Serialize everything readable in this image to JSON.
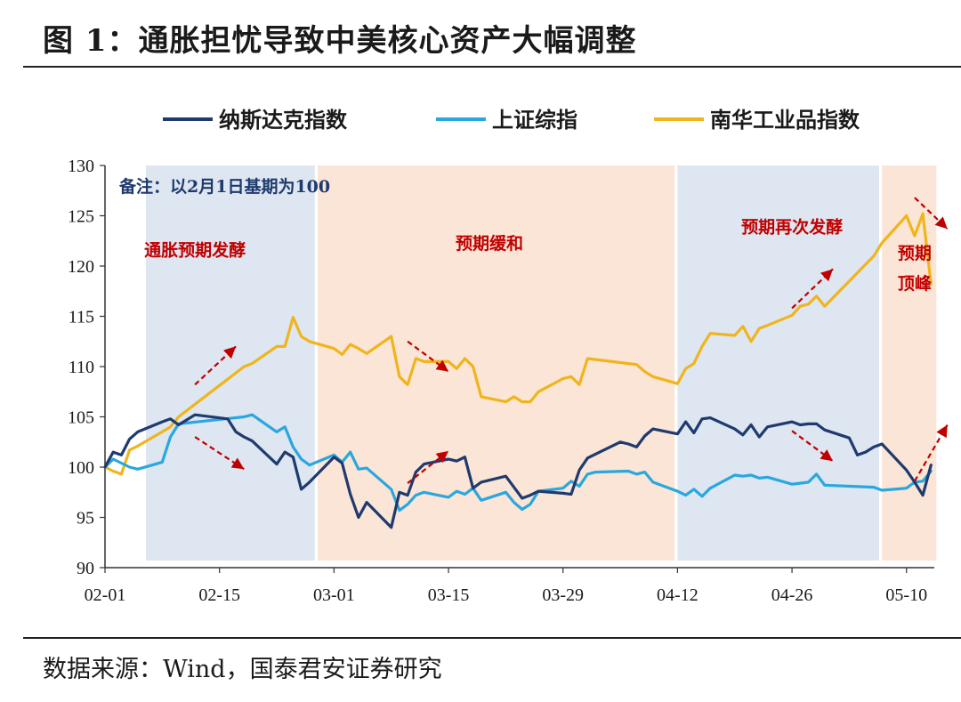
{
  "figure": {
    "title": "图 1：通胀担忧导致中美核心资产大幅调整",
    "source": "数据来源：Wind，国泰君安证券研究"
  },
  "chart_data": {
    "type": "line",
    "ylim": [
      90,
      130
    ],
    "yticks": [
      90,
      95,
      100,
      105,
      110,
      115,
      120,
      125,
      130
    ],
    "x_ticks": [
      "02-01",
      "02-15",
      "03-01",
      "03-15",
      "03-29",
      "04-12",
      "04-26",
      "05-10"
    ],
    "grid": false,
    "legend_position": "top",
    "colors": {
      "nasdaq": "#1f3a6e",
      "sse": "#2aa7de",
      "nanhua": "#f0b51c",
      "blue_band": "#dde6f1",
      "orange_band": "#fbe5d6",
      "annotation": "#c00000"
    },
    "note": "备注：以2月1日基期为100",
    "shaded_periods": [
      {
        "start": "02-06",
        "end": "02-26",
        "shade": "blue"
      },
      {
        "start": "02-27",
        "end": "04-11",
        "shade": "orange"
      },
      {
        "start": "04-12",
        "end": "05-06",
        "shade": "blue"
      },
      {
        "start": "05-07",
        "end": "05-13",
        "shade": "orange"
      }
    ],
    "annotations": [
      {
        "text": "通胀预期发酵",
        "date": "02-12",
        "y": 121
      },
      {
        "text": "预期缓和",
        "date": "03-20",
        "y": 121.7
      },
      {
        "text": "预期再次发酵",
        "date": "04-26",
        "y": 123.3
      },
      {
        "text": "预期",
        "date": "05-11",
        "y": 120.7
      },
      {
        "text": "顶峰",
        "date": "05-11",
        "y": 117.7
      }
    ],
    "arrows": [
      {
        "from": [
          "02-12",
          108.2
        ],
        "to": [
          "02-17",
          112
        ],
        "dir": "up"
      },
      {
        "from": [
          "02-12",
          103.0
        ],
        "to": [
          "02-18",
          99.8
        ],
        "dir": "down"
      },
      {
        "from": [
          "03-10",
          112.5
        ],
        "to": [
          "03-15",
          109.5
        ],
        "dir": "down"
      },
      {
        "from": [
          "03-10",
          98.4
        ],
        "to": [
          "03-15",
          101.6
        ],
        "dir": "up"
      },
      {
        "from": [
          "04-26",
          115.8
        ],
        "to": [
          "05-01",
          119.7
        ],
        "dir": "up"
      },
      {
        "from": [
          "04-26",
          103.6
        ],
        "to": [
          "05-01",
          100.6
        ],
        "dir": "down"
      },
      {
        "from": [
          "05-11",
          126.8
        ],
        "to": [
          "05-15",
          123.7
        ],
        "dir": "down"
      },
      {
        "from": [
          "05-11",
          98.6
        ],
        "to": [
          "05-15",
          104.2
        ],
        "dir": "up"
      }
    ],
    "series": [
      {
        "name": "纳斯达克指数",
        "key": "nasdaq",
        "points": [
          [
            "02-01",
            100.0
          ],
          [
            "02-02",
            101.5
          ],
          [
            "02-03",
            101.2
          ],
          [
            "02-04",
            102.8
          ],
          [
            "02-05",
            103.5
          ],
          [
            "02-08",
            104.5
          ],
          [
            "02-09",
            104.8
          ],
          [
            "02-10",
            104.2
          ],
          [
            "02-11",
            104.7
          ],
          [
            "02-12",
            105.2
          ],
          [
            "02-16",
            104.8
          ],
          [
            "02-17",
            103.5
          ],
          [
            "02-18",
            103.0
          ],
          [
            "02-19",
            102.6
          ],
          [
            "02-22",
            100.3
          ],
          [
            "02-23",
            101.5
          ],
          [
            "02-24",
            101.0
          ],
          [
            "02-25",
            97.8
          ],
          [
            "02-26",
            98.5
          ],
          [
            "03-01",
            101.0
          ],
          [
            "03-02",
            100.4
          ],
          [
            "03-03",
            97.3
          ],
          [
            "03-04",
            95.0
          ],
          [
            "03-05",
            96.5
          ],
          [
            "03-08",
            94.0
          ],
          [
            "03-09",
            97.5
          ],
          [
            "03-10",
            97.2
          ],
          [
            "03-11",
            99.5
          ],
          [
            "03-12",
            100.3
          ],
          [
            "03-15",
            100.8
          ],
          [
            "03-16",
            100.6
          ],
          [
            "03-17",
            101.0
          ],
          [
            "03-18",
            97.9
          ],
          [
            "03-19",
            98.5
          ],
          [
            "03-22",
            99.1
          ],
          [
            "03-23",
            98.0
          ],
          [
            "03-24",
            96.9
          ],
          [
            "03-25",
            97.2
          ],
          [
            "03-26",
            97.6
          ],
          [
            "03-29",
            97.4
          ],
          [
            "03-30",
            97.3
          ],
          [
            "03-31",
            99.7
          ],
          [
            "04-01",
            100.9
          ],
          [
            "04-05",
            102.5
          ],
          [
            "04-06",
            102.3
          ],
          [
            "04-07",
            102.0
          ],
          [
            "04-08",
            103.1
          ],
          [
            "04-09",
            103.8
          ],
          [
            "04-12",
            103.3
          ],
          [
            "04-13",
            104.5
          ],
          [
            "04-14",
            103.4
          ],
          [
            "04-15",
            104.8
          ],
          [
            "04-16",
            104.9
          ],
          [
            "04-19",
            103.8
          ],
          [
            "04-20",
            103.2
          ],
          [
            "04-21",
            104.2
          ],
          [
            "04-22",
            103.0
          ],
          [
            "04-23",
            104.0
          ],
          [
            "04-26",
            104.5
          ],
          [
            "04-27",
            104.2
          ],
          [
            "04-28",
            104.3
          ],
          [
            "04-29",
            104.3
          ],
          [
            "04-30",
            103.7
          ],
          [
            "05-03",
            102.9
          ],
          [
            "05-04",
            101.2
          ],
          [
            "05-05",
            101.5
          ],
          [
            "05-06",
            102.0
          ],
          [
            "05-07",
            102.3
          ],
          [
            "05-10",
            99.7
          ],
          [
            "05-11",
            98.5
          ],
          [
            "05-12",
            97.2
          ],
          [
            "05-13",
            100.2
          ]
        ]
      },
      {
        "name": "上证综指",
        "key": "sse",
        "points": [
          [
            "02-01",
            100.0
          ],
          [
            "02-02",
            100.8
          ],
          [
            "02-03",
            100.4
          ],
          [
            "02-04",
            100.0
          ],
          [
            "02-05",
            99.8
          ],
          [
            "02-08",
            100.5
          ],
          [
            "02-09",
            103.0
          ],
          [
            "02-10",
            104.3
          ],
          [
            "02-18",
            105.0
          ],
          [
            "02-19",
            105.2
          ],
          [
            "02-22",
            103.5
          ],
          [
            "02-23",
            104.0
          ],
          [
            "02-24",
            102.0
          ],
          [
            "02-25",
            100.8
          ],
          [
            "02-26",
            100.2
          ],
          [
            "03-01",
            101.2
          ],
          [
            "03-02",
            100.5
          ],
          [
            "03-03",
            101.5
          ],
          [
            "03-04",
            99.8
          ],
          [
            "03-05",
            99.9
          ],
          [
            "03-08",
            97.8
          ],
          [
            "03-09",
            95.7
          ],
          [
            "03-10",
            96.3
          ],
          [
            "03-11",
            97.2
          ],
          [
            "03-12",
            97.5
          ],
          [
            "03-15",
            97.0
          ],
          [
            "03-16",
            97.6
          ],
          [
            "03-17",
            97.3
          ],
          [
            "03-18",
            97.9
          ],
          [
            "03-19",
            96.7
          ],
          [
            "03-22",
            97.5
          ],
          [
            "03-23",
            96.5
          ],
          [
            "03-24",
            95.8
          ],
          [
            "03-25",
            96.3
          ],
          [
            "03-26",
            97.6
          ],
          [
            "03-29",
            97.9
          ],
          [
            "03-30",
            98.6
          ],
          [
            "03-31",
            98.1
          ],
          [
            "04-01",
            99.3
          ],
          [
            "04-02",
            99.5
          ],
          [
            "04-06",
            99.6
          ],
          [
            "04-07",
            99.3
          ],
          [
            "04-08",
            99.5
          ],
          [
            "04-09",
            98.5
          ],
          [
            "04-12",
            97.6
          ],
          [
            "04-13",
            97.2
          ],
          [
            "04-14",
            97.8
          ],
          [
            "04-15",
            97.1
          ],
          [
            "04-16",
            97.9
          ],
          [
            "04-19",
            99.2
          ],
          [
            "04-20",
            99.1
          ],
          [
            "04-21",
            99.2
          ],
          [
            "04-22",
            98.9
          ],
          [
            "04-23",
            99.0
          ],
          [
            "04-26",
            98.3
          ],
          [
            "04-27",
            98.4
          ],
          [
            "04-28",
            98.5
          ],
          [
            "04-29",
            99.3
          ],
          [
            "04-30",
            98.2
          ],
          [
            "05-06",
            98.0
          ],
          [
            "05-07",
            97.7
          ],
          [
            "05-10",
            97.9
          ],
          [
            "05-11",
            98.5
          ],
          [
            "05-12",
            98.6
          ],
          [
            "05-13",
            99.6
          ]
        ]
      },
      {
        "name": "南华工业品指数",
        "key": "nanhua",
        "points": [
          [
            "02-01",
            100.0
          ],
          [
            "02-02",
            99.6
          ],
          [
            "02-03",
            99.3
          ],
          [
            "02-04",
            101.7
          ],
          [
            "02-05",
            102.1
          ],
          [
            "02-08",
            103.5
          ],
          [
            "02-09",
            104.0
          ],
          [
            "02-10",
            105.0
          ],
          [
            "02-18",
            110.0
          ],
          [
            "02-19",
            110.3
          ],
          [
            "02-22",
            112.0
          ],
          [
            "02-23",
            112.0
          ],
          [
            "02-24",
            114.9
          ],
          [
            "02-25",
            113.0
          ],
          [
            "02-26",
            112.5
          ],
          [
            "03-01",
            111.8
          ],
          [
            "03-02",
            111.2
          ],
          [
            "03-03",
            112.2
          ],
          [
            "03-04",
            111.8
          ],
          [
            "03-05",
            111.3
          ],
          [
            "03-08",
            113.0
          ],
          [
            "03-09",
            109.0
          ],
          [
            "03-10",
            108.2
          ],
          [
            "03-11",
            110.8
          ],
          [
            "03-12",
            110.5
          ],
          [
            "03-15",
            110.5
          ],
          [
            "03-16",
            109.8
          ],
          [
            "03-17",
            110.8
          ],
          [
            "03-18",
            110.0
          ],
          [
            "03-19",
            107.0
          ],
          [
            "03-22",
            106.5
          ],
          [
            "03-23",
            107.0
          ],
          [
            "03-24",
            106.5
          ],
          [
            "03-25",
            106.5
          ],
          [
            "03-26",
            107.5
          ],
          [
            "03-29",
            108.8
          ],
          [
            "03-30",
            109.0
          ],
          [
            "03-31",
            108.2
          ],
          [
            "04-01",
            110.8
          ],
          [
            "04-06",
            110.3
          ],
          [
            "04-07",
            110.2
          ],
          [
            "04-08",
            109.5
          ],
          [
            "04-09",
            109.0
          ],
          [
            "04-12",
            108.3
          ],
          [
            "04-13",
            109.8
          ],
          [
            "04-14",
            110.3
          ],
          [
            "04-15",
            112.0
          ],
          [
            "04-16",
            113.3
          ],
          [
            "04-19",
            113.1
          ],
          [
            "04-20",
            114.0
          ],
          [
            "04-21",
            112.5
          ],
          [
            "04-22",
            113.8
          ],
          [
            "04-23",
            114.1
          ],
          [
            "04-26",
            115.1
          ],
          [
            "04-27",
            116.0
          ],
          [
            "04-28",
            116.2
          ],
          [
            "04-29",
            117.0
          ],
          [
            "04-30",
            116.0
          ],
          [
            "05-06",
            121.0
          ],
          [
            "05-07",
            122.3
          ],
          [
            "05-10",
            125.0
          ],
          [
            "05-11",
            123.0
          ],
          [
            "05-12",
            125.2
          ],
          [
            "05-13",
            118.2
          ]
        ]
      }
    ]
  }
}
